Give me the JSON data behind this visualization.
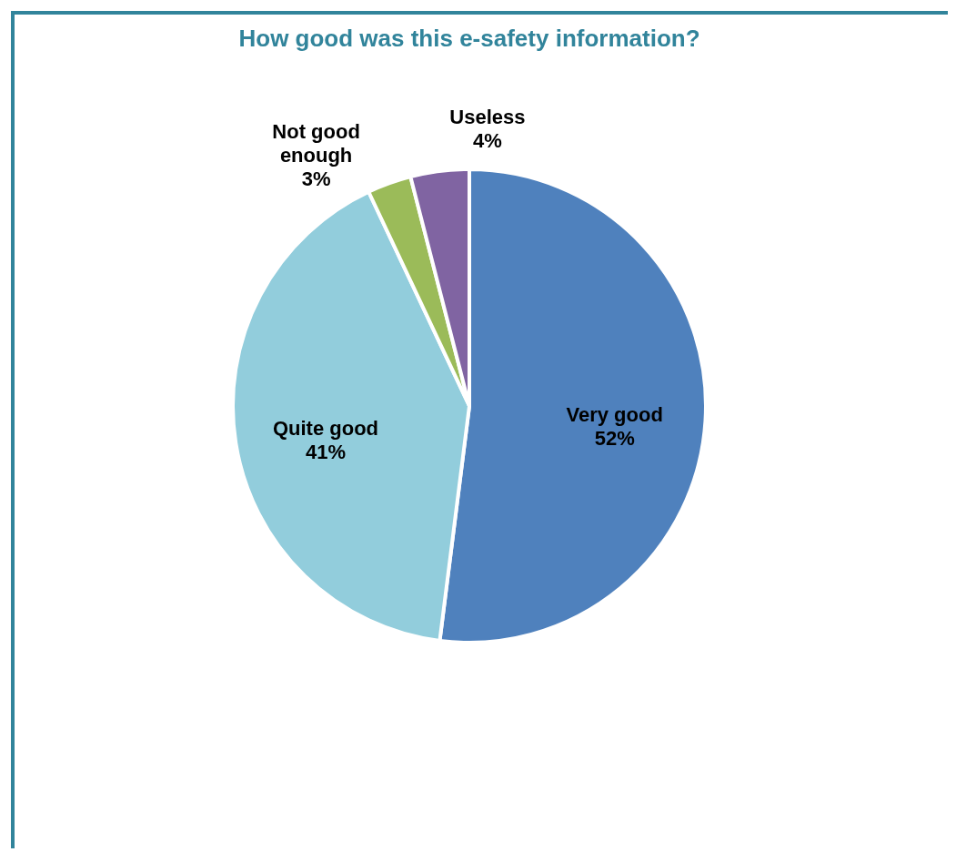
{
  "chart_data": {
    "type": "pie",
    "title": "How good was this e-safety information?",
    "categories": [
      "Very good",
      "Quite good",
      "Not good enough",
      "Useless"
    ],
    "values": [
      52,
      41,
      3,
      4
    ],
    "colors": [
      "#4f81bd",
      "#92cddc",
      "#9bbb59",
      "#8064a2"
    ],
    "value_labels": [
      "52%",
      "41%",
      "3%",
      "4%"
    ]
  }
}
